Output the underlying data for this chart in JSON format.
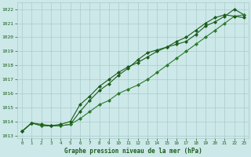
{
  "title": "Graphe pression niveau de la mer (hPa)",
  "background_color": "#cce8e8",
  "grid_color": "#aacccc",
  "line_color_dark": "#1a5c1a",
  "line_color_mid": "#2a7a2a",
  "xlim": [
    -0.5,
    23.5
  ],
  "ylim": [
    1012.8,
    1022.5
  ],
  "xticks": [
    0,
    1,
    2,
    3,
    4,
    5,
    6,
    7,
    8,
    9,
    10,
    11,
    12,
    13,
    14,
    15,
    16,
    17,
    18,
    19,
    20,
    21,
    22,
    23
  ],
  "yticks": [
    1013,
    1014,
    1015,
    1016,
    1017,
    1018,
    1019,
    1020,
    1021,
    1022
  ],
  "series1": [
    1013.3,
    1013.9,
    1013.7,
    1013.7,
    1013.7,
    1013.8,
    1014.7,
    1015.5,
    1016.2,
    1016.7,
    1017.3,
    1017.8,
    1018.4,
    1018.9,
    1019.1,
    1019.3,
    1019.5,
    1019.7,
    1020.2,
    1020.8,
    1021.1,
    1021.5,
    1022.0,
    1021.6
  ],
  "series2": [
    1013.3,
    1013.9,
    1013.7,
    1013.7,
    1013.7,
    1013.8,
    1014.2,
    1014.7,
    1015.2,
    1015.5,
    1016.0,
    1016.3,
    1016.6,
    1017.0,
    1017.5,
    1018.0,
    1018.5,
    1019.0,
    1019.5,
    1020.0,
    1020.5,
    1021.0,
    1021.5,
    1021.6
  ],
  "series3": [
    1013.3,
    1013.9,
    1013.8,
    1013.7,
    1013.8,
    1014.0,
    1015.2,
    1015.8,
    1016.5,
    1017.0,
    1017.5,
    1017.9,
    1018.2,
    1018.6,
    1019.0,
    1019.3,
    1019.7,
    1020.0,
    1020.5,
    1021.0,
    1021.4,
    1021.6,
    1021.5,
    1021.4
  ]
}
